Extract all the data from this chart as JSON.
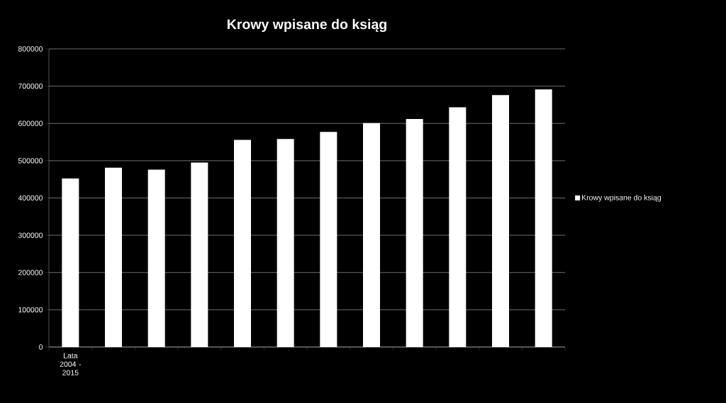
{
  "chart_data": {
    "type": "bar",
    "title": "Krowy wpisane do ksiąg",
    "categories": [
      "Lata 2004 - 2015",
      null,
      null,
      null,
      null,
      null,
      null,
      null,
      null,
      null,
      null,
      null
    ],
    "series": [
      {
        "name": "Krowy wpisane do ksiąg",
        "color": "#ffffff",
        "values": [
          452000,
          481000,
          476000,
          495000,
          556000,
          558000,
          577000,
          601000,
          612000,
          643000,
          676000,
          691000
        ]
      }
    ],
    "ylim": [
      0,
      800000
    ],
    "yticks": [
      0,
      100000,
      200000,
      300000,
      400000,
      500000,
      600000,
      700000,
      800000
    ],
    "grid": "y",
    "legend": "right"
  }
}
